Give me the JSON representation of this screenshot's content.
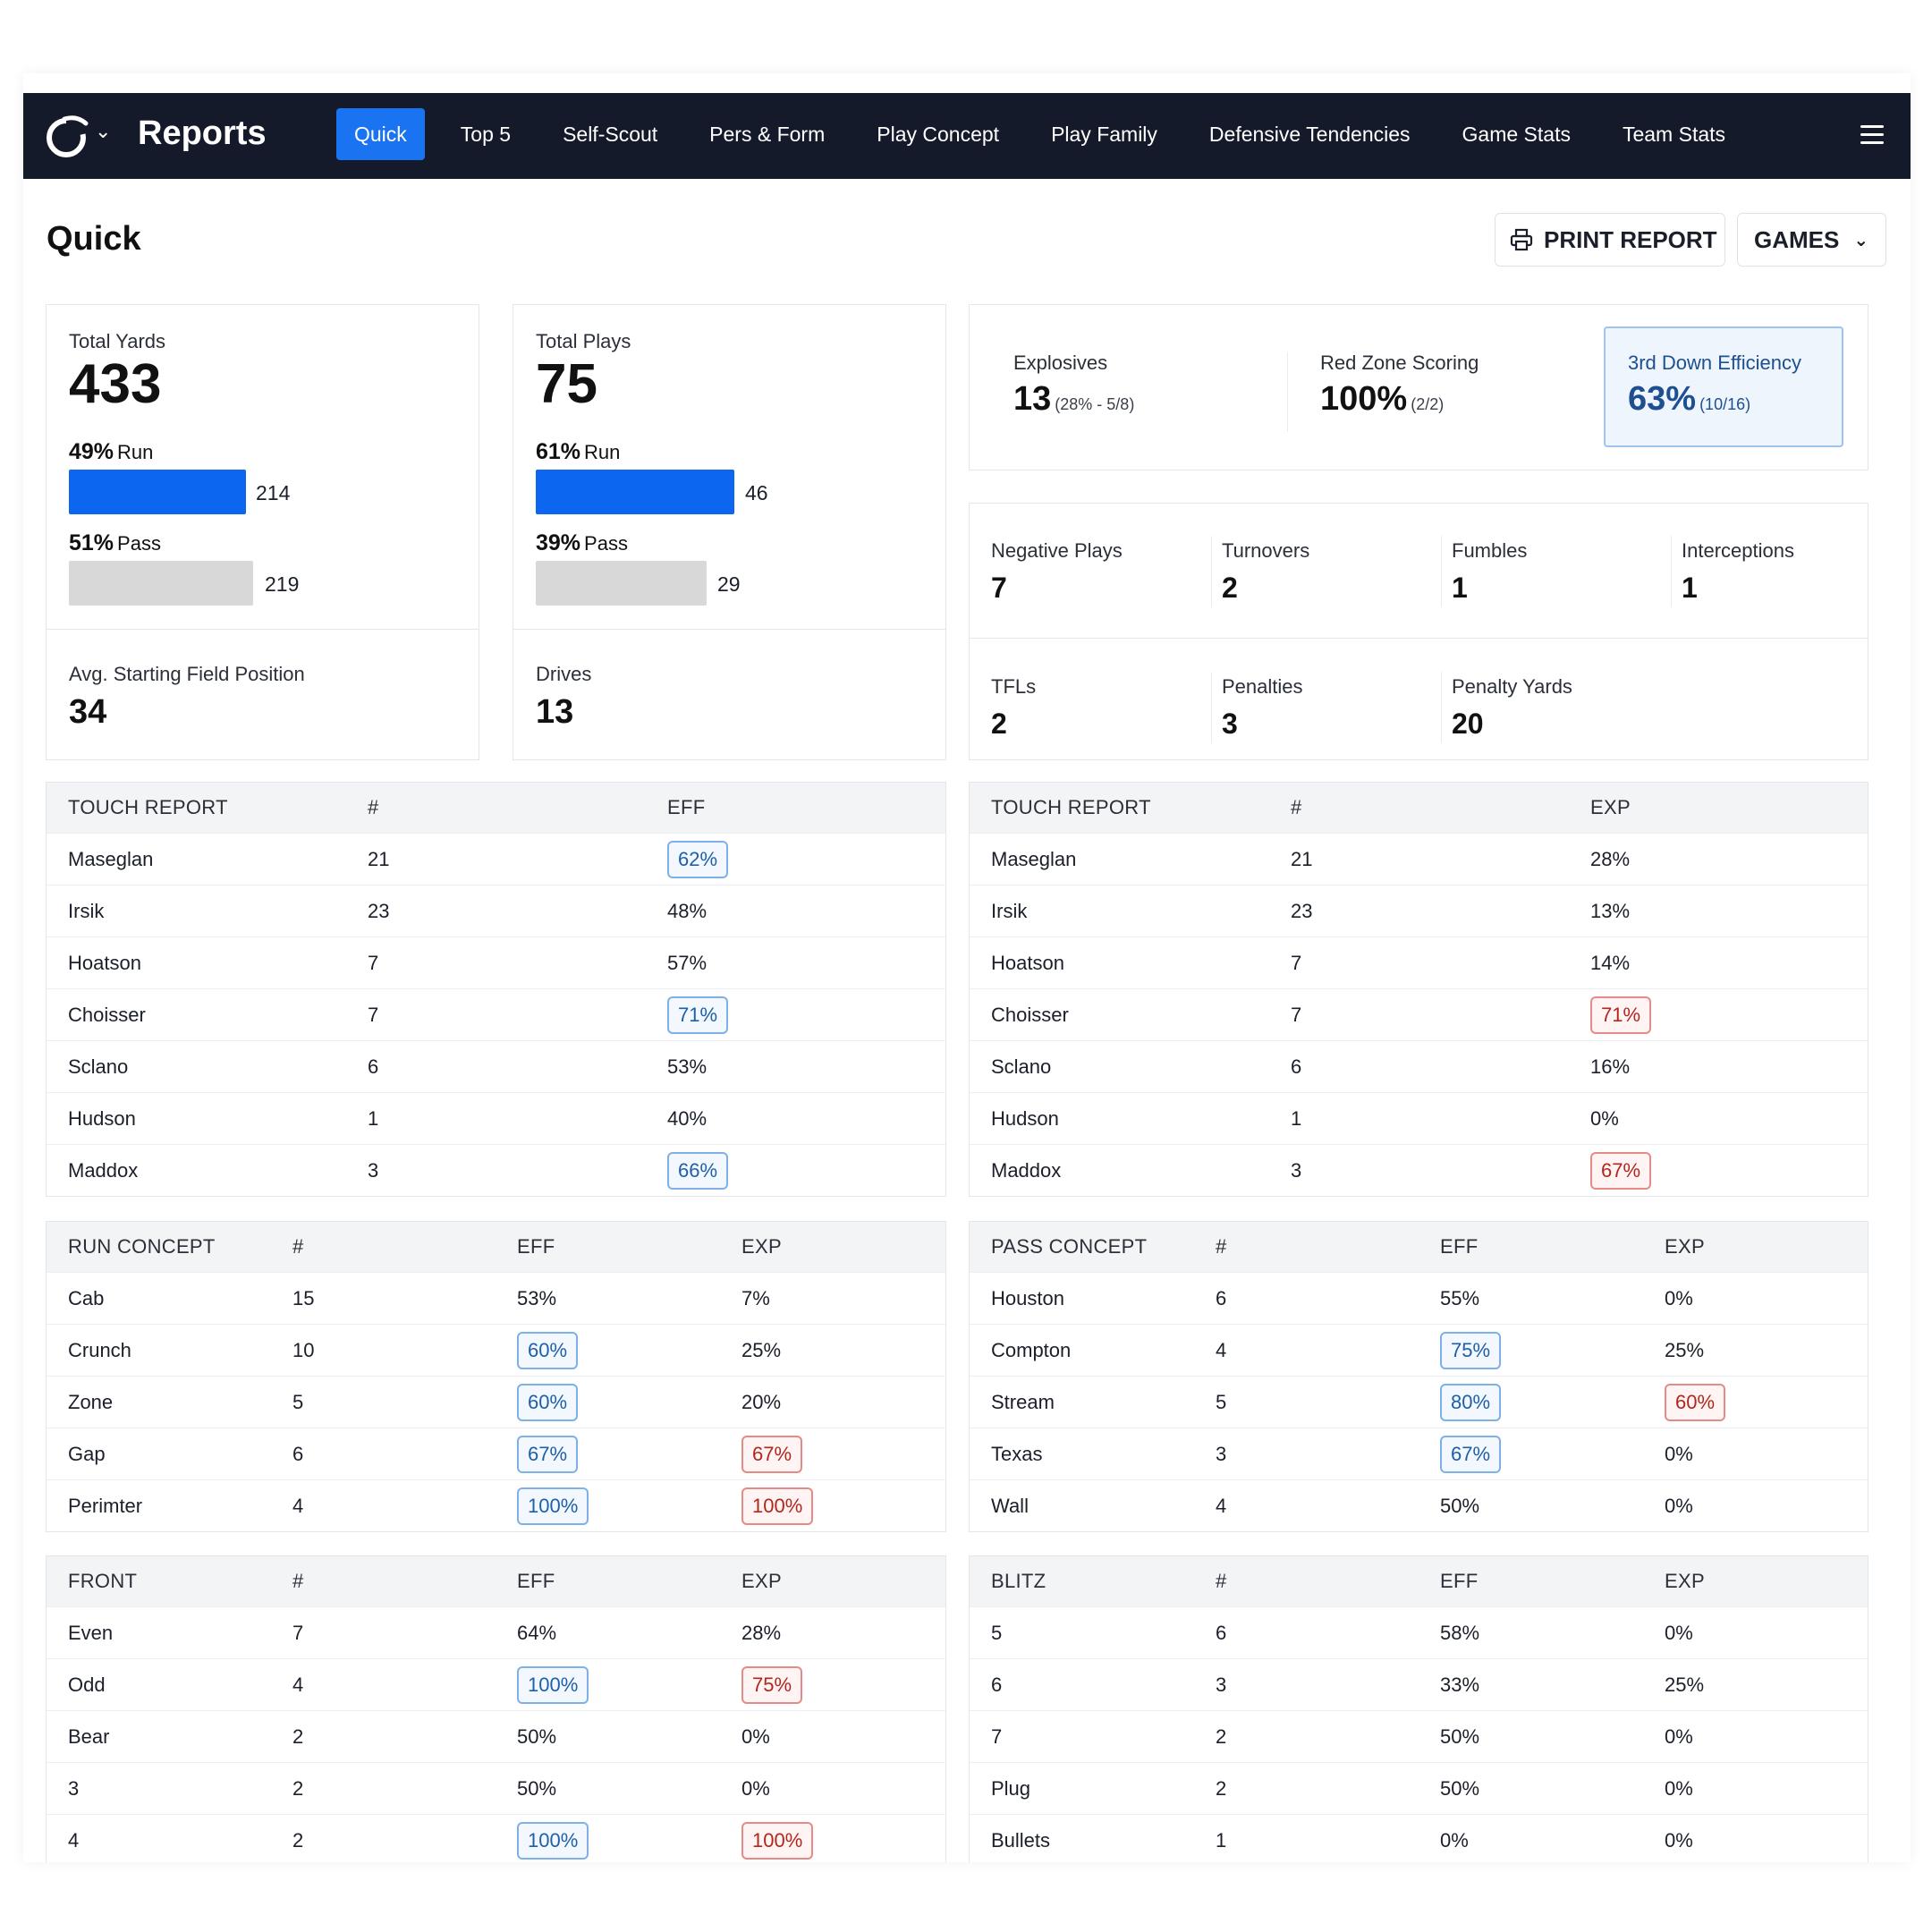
{
  "nav": {
    "brand": "Reports",
    "tabs": [
      "Quick",
      "Top 5",
      "Self-Scout",
      "Pers & Form",
      "Play Concept",
      "Play Family",
      "Defensive Tendencies",
      "Game Stats",
      "Team Stats"
    ],
    "active_tab": "Quick"
  },
  "header": {
    "title": "Quick",
    "print_label": "PRINT REPORT",
    "games_label": "GAMES"
  },
  "yards": {
    "label": "Total Yards",
    "value": "433",
    "run_pct": "49%",
    "run_label": "Run",
    "run_value": "214",
    "pass_pct": "51%",
    "pass_label": "Pass",
    "pass_value": "219"
  },
  "plays": {
    "label": "Total Plays",
    "value": "75",
    "run_pct": "61%",
    "run_label": "Run",
    "run_value": "46",
    "pass_pct": "39%",
    "pass_label": "Pass",
    "pass_value": "29"
  },
  "field_pos": {
    "label": "Avg. Starting Field Position",
    "value": "34"
  },
  "drives": {
    "label": "Drives",
    "value": "13"
  },
  "kpis": {
    "explosives": {
      "label": "Explosives",
      "value": "13",
      "sub": "(28% - 5/8)"
    },
    "red_zone": {
      "label": "Red Zone Scoring",
      "value": "100%",
      "sub": "(2/2)"
    },
    "third_down": {
      "label": "3rd Down Efficiency",
      "value": "63%",
      "sub": "(10/16)"
    }
  },
  "stats": {
    "negative_plays": {
      "label": "Negative Plays",
      "value": "7"
    },
    "turnovers": {
      "label": "Turnovers",
      "value": "2"
    },
    "fumbles": {
      "label": "Fumbles",
      "value": "1"
    },
    "interceptions": {
      "label": "Interceptions",
      "value": "1"
    },
    "tfls": {
      "label": "TFLs",
      "value": "2"
    },
    "penalties": {
      "label": "Penalties",
      "value": "3"
    },
    "penalty_yards": {
      "label": "Penalty Yards",
      "value": "20"
    }
  },
  "colors": {
    "nav_bg": "#141a29",
    "accent": "#1a73f0",
    "run_bar": "#0d66f0",
    "pass_bar": "#d8d8d8",
    "badge_blue": "#1d5fa8",
    "badge_red": "#b3261e"
  },
  "tables": {
    "touch_eff": {
      "headers": [
        "TOUCH REPORT",
        "#",
        "EFF"
      ],
      "rows": [
        {
          "c": [
            "Maseglan",
            "21",
            "62%"
          ],
          "h": [
            "",
            "",
            "blue"
          ]
        },
        {
          "c": [
            "Irsik",
            "23",
            "48%"
          ],
          "h": [
            "",
            "",
            ""
          ]
        },
        {
          "c": [
            "Hoatson",
            "7",
            "57%"
          ],
          "h": [
            "",
            "",
            ""
          ]
        },
        {
          "c": [
            "Choisser",
            "7",
            "71%"
          ],
          "h": [
            "",
            "",
            "blue"
          ]
        },
        {
          "c": [
            "Sclano",
            "6",
            "53%"
          ],
          "h": [
            "",
            "",
            ""
          ]
        },
        {
          "c": [
            "Hudson",
            "1",
            "40%"
          ],
          "h": [
            "",
            "",
            ""
          ]
        },
        {
          "c": [
            "Maddox",
            "3",
            "66%"
          ],
          "h": [
            "",
            "",
            "blue"
          ]
        }
      ]
    },
    "touch_exp": {
      "headers": [
        "TOUCH REPORT",
        "#",
        "EXP"
      ],
      "rows": [
        {
          "c": [
            "Maseglan",
            "21",
            "28%"
          ],
          "h": [
            "",
            "",
            ""
          ]
        },
        {
          "c": [
            "Irsik",
            "23",
            "13%"
          ],
          "h": [
            "",
            "",
            ""
          ]
        },
        {
          "c": [
            "Hoatson",
            "7",
            "14%"
          ],
          "h": [
            "",
            "",
            ""
          ]
        },
        {
          "c": [
            "Choisser",
            "7",
            "71%"
          ],
          "h": [
            "",
            "",
            "red"
          ]
        },
        {
          "c": [
            "Sclano",
            "6",
            "16%"
          ],
          "h": [
            "",
            "",
            ""
          ]
        },
        {
          "c": [
            "Hudson",
            "1",
            "0%"
          ],
          "h": [
            "",
            "",
            ""
          ]
        },
        {
          "c": [
            "Maddox",
            "3",
            "67%"
          ],
          "h": [
            "",
            "",
            "red"
          ]
        }
      ]
    },
    "run_concept": {
      "headers": [
        "RUN CONCEPT",
        "#",
        "EFF",
        "EXP"
      ],
      "rows": [
        {
          "c": [
            "Cab",
            "15",
            "53%",
            "7%"
          ],
          "h": [
            "",
            "",
            "",
            ""
          ]
        },
        {
          "c": [
            "Crunch",
            "10",
            "60%",
            "25%"
          ],
          "h": [
            "",
            "",
            "blue",
            ""
          ]
        },
        {
          "c": [
            "Zone",
            "5",
            "60%",
            "20%"
          ],
          "h": [
            "",
            "",
            "blue",
            ""
          ]
        },
        {
          "c": [
            "Gap",
            "6",
            "67%",
            "67%"
          ],
          "h": [
            "",
            "",
            "blue",
            "red"
          ]
        },
        {
          "c": [
            "Perimter",
            "4",
            "100%",
            "100%"
          ],
          "h": [
            "",
            "",
            "blue",
            "red"
          ]
        }
      ]
    },
    "pass_concept": {
      "headers": [
        "PASS CONCEPT",
        "#",
        "EFF",
        "EXP"
      ],
      "rows": [
        {
          "c": [
            "Houston",
            "6",
            "55%",
            "0%"
          ],
          "h": [
            "",
            "",
            "",
            ""
          ]
        },
        {
          "c": [
            "Compton",
            "4",
            "75%",
            "25%"
          ],
          "h": [
            "",
            "",
            "blue",
            ""
          ]
        },
        {
          "c": [
            "Stream",
            "5",
            "80%",
            "60%"
          ],
          "h": [
            "",
            "",
            "blue",
            "red"
          ]
        },
        {
          "c": [
            "Texas",
            "3",
            "67%",
            "0%"
          ],
          "h": [
            "",
            "",
            "blue",
            ""
          ]
        },
        {
          "c": [
            "Wall",
            "4",
            "50%",
            "0%"
          ],
          "h": [
            "",
            "",
            "",
            ""
          ]
        }
      ]
    },
    "front": {
      "headers": [
        "FRONT",
        "#",
        "EFF",
        "EXP"
      ],
      "rows": [
        {
          "c": [
            "Even",
            "7",
            "64%",
            "28%"
          ],
          "h": [
            "",
            "",
            "",
            ""
          ]
        },
        {
          "c": [
            "Odd",
            "4",
            "100%",
            "75%"
          ],
          "h": [
            "",
            "",
            "blue",
            "red"
          ]
        },
        {
          "c": [
            "Bear",
            "2",
            "50%",
            "0%"
          ],
          "h": [
            "",
            "",
            "",
            ""
          ]
        },
        {
          "c": [
            "3",
            "2",
            "50%",
            "0%"
          ],
          "h": [
            "",
            "",
            "",
            ""
          ]
        },
        {
          "c": [
            "4",
            "2",
            "100%",
            "100%"
          ],
          "h": [
            "",
            "",
            "blue",
            "red"
          ]
        }
      ]
    },
    "blitz": {
      "headers": [
        "BLITZ",
        "#",
        "EFF",
        "EXP"
      ],
      "rows": [
        {
          "c": [
            "5",
            "6",
            "58%",
            "0%"
          ],
          "h": [
            "",
            "",
            "",
            ""
          ]
        },
        {
          "c": [
            "6",
            "3",
            "33%",
            "25%"
          ],
          "h": [
            "",
            "",
            "",
            ""
          ]
        },
        {
          "c": [
            "7",
            "2",
            "50%",
            "0%"
          ],
          "h": [
            "",
            "",
            "",
            ""
          ]
        },
        {
          "c": [
            "Plug",
            "2",
            "50%",
            "0%"
          ],
          "h": [
            "",
            "",
            "",
            ""
          ]
        },
        {
          "c": [
            "Bullets",
            "1",
            "0%",
            "0%"
          ],
          "h": [
            "",
            "",
            "",
            ""
          ]
        }
      ]
    }
  }
}
